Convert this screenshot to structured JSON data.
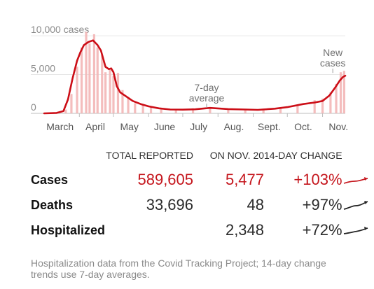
{
  "chart_data": {
    "type": "bar",
    "title": "",
    "xlabel": "",
    "ylabel": "",
    "ylim": [
      0,
      11000
    ],
    "yticks": [
      0,
      5000,
      10000
    ],
    "ytick_labels": [
      "0",
      "5,000",
      "10,000 cases"
    ],
    "x_months": [
      "March",
      "April",
      "May",
      "June",
      "July",
      "Aug.",
      "Sept.",
      "Oct.",
      "Nov."
    ],
    "x_range": [
      "2020-03-01",
      "2020-11-21"
    ],
    "series": [
      {
        "name": "New cases",
        "kind": "bars",
        "color": "#f3b6b6",
        "x": [
          "2020-03-20",
          "2020-03-25",
          "2020-03-30",
          "2020-04-03",
          "2020-04-07",
          "2020-04-10",
          "2020-04-14",
          "2020-04-17",
          "2020-04-21",
          "2020-04-24",
          "2020-04-28",
          "2020-05-01",
          "2020-05-05",
          "2020-05-09",
          "2020-05-14",
          "2020-05-20",
          "2020-05-27",
          "2020-06-03",
          "2020-06-12",
          "2020-06-25",
          "2020-07-10",
          "2020-07-25",
          "2020-08-10",
          "2020-08-25",
          "2020-09-10",
          "2020-09-25",
          "2020-10-10",
          "2020-10-25",
          "2020-11-01",
          "2020-11-08",
          "2020-11-13",
          "2020-11-17",
          "2020-11-20"
        ],
        "values": [
          500,
          2500,
          6000,
          8500,
          10500,
          9000,
          10200,
          8500,
          7500,
          5300,
          5600,
          4800,
          5200,
          3000,
          2100,
          1300,
          1100,
          800,
          600,
          500,
          650,
          700,
          550,
          500,
          600,
          700,
          1100,
          1700,
          1900,
          2700,
          3800,
          5300,
          5477
        ]
      },
      {
        "name": "7-day average",
        "kind": "line",
        "color": "#cc0e17",
        "x": [
          "2020-03-01",
          "2020-03-12",
          "2020-03-18",
          "2020-03-22",
          "2020-03-26",
          "2020-03-30",
          "2020-04-02",
          "2020-04-05",
          "2020-04-09",
          "2020-04-13",
          "2020-04-17",
          "2020-04-20",
          "2020-04-24",
          "2020-04-27",
          "2020-04-29",
          "2020-05-01",
          "2020-05-04",
          "2020-05-07",
          "2020-05-12",
          "2020-05-18",
          "2020-05-25",
          "2020-06-01",
          "2020-06-10",
          "2020-06-20",
          "2020-07-01",
          "2020-07-12",
          "2020-07-25",
          "2020-08-10",
          "2020-08-25",
          "2020-09-05",
          "2020-09-20",
          "2020-10-01",
          "2020-10-15",
          "2020-10-25",
          "2020-11-01",
          "2020-11-07",
          "2020-11-12",
          "2020-11-16",
          "2020-11-19",
          "2020-11-21"
        ],
        "values": [
          0,
          50,
          300,
          1800,
          4500,
          6800,
          7900,
          8800,
          9200,
          9400,
          8800,
          8100,
          6000,
          5700,
          5800,
          5300,
          3500,
          2700,
          2200,
          1600,
          1200,
          900,
          650,
          500,
          480,
          520,
          700,
          550,
          500,
          450,
          600,
          800,
          1200,
          1400,
          1600,
          2300,
          3300,
          4200,
          4700,
          4850
        ]
      }
    ],
    "annotations": [
      {
        "text_lines": [
          "7-day",
          "average"
        ],
        "date": "2020-07-22",
        "value": 800
      },
      {
        "text_lines": [
          "New",
          "cases"
        ],
        "date": "2020-11-10",
        "value": 5300
      }
    ]
  },
  "table": {
    "headers": [
      "",
      "TOTAL REPORTED",
      "ON NOV. 20",
      "14-DAY CHANGE"
    ],
    "rows": [
      {
        "label": "Cases",
        "total": "589,605",
        "day": "5,477",
        "change": "+103%",
        "trend_color": "#c5161d"
      },
      {
        "label": "Deaths",
        "total": "33,696",
        "day": "48",
        "change": "+97%",
        "trend_color": "#222222"
      },
      {
        "label": "Hospitalized",
        "total": "",
        "day": "2,348",
        "change": "+72%",
        "trend_color": "#222222"
      }
    ]
  },
  "footnote": "Hospitalization data from the Covid Tracking Project; 14-day change trends use 7-day averages."
}
